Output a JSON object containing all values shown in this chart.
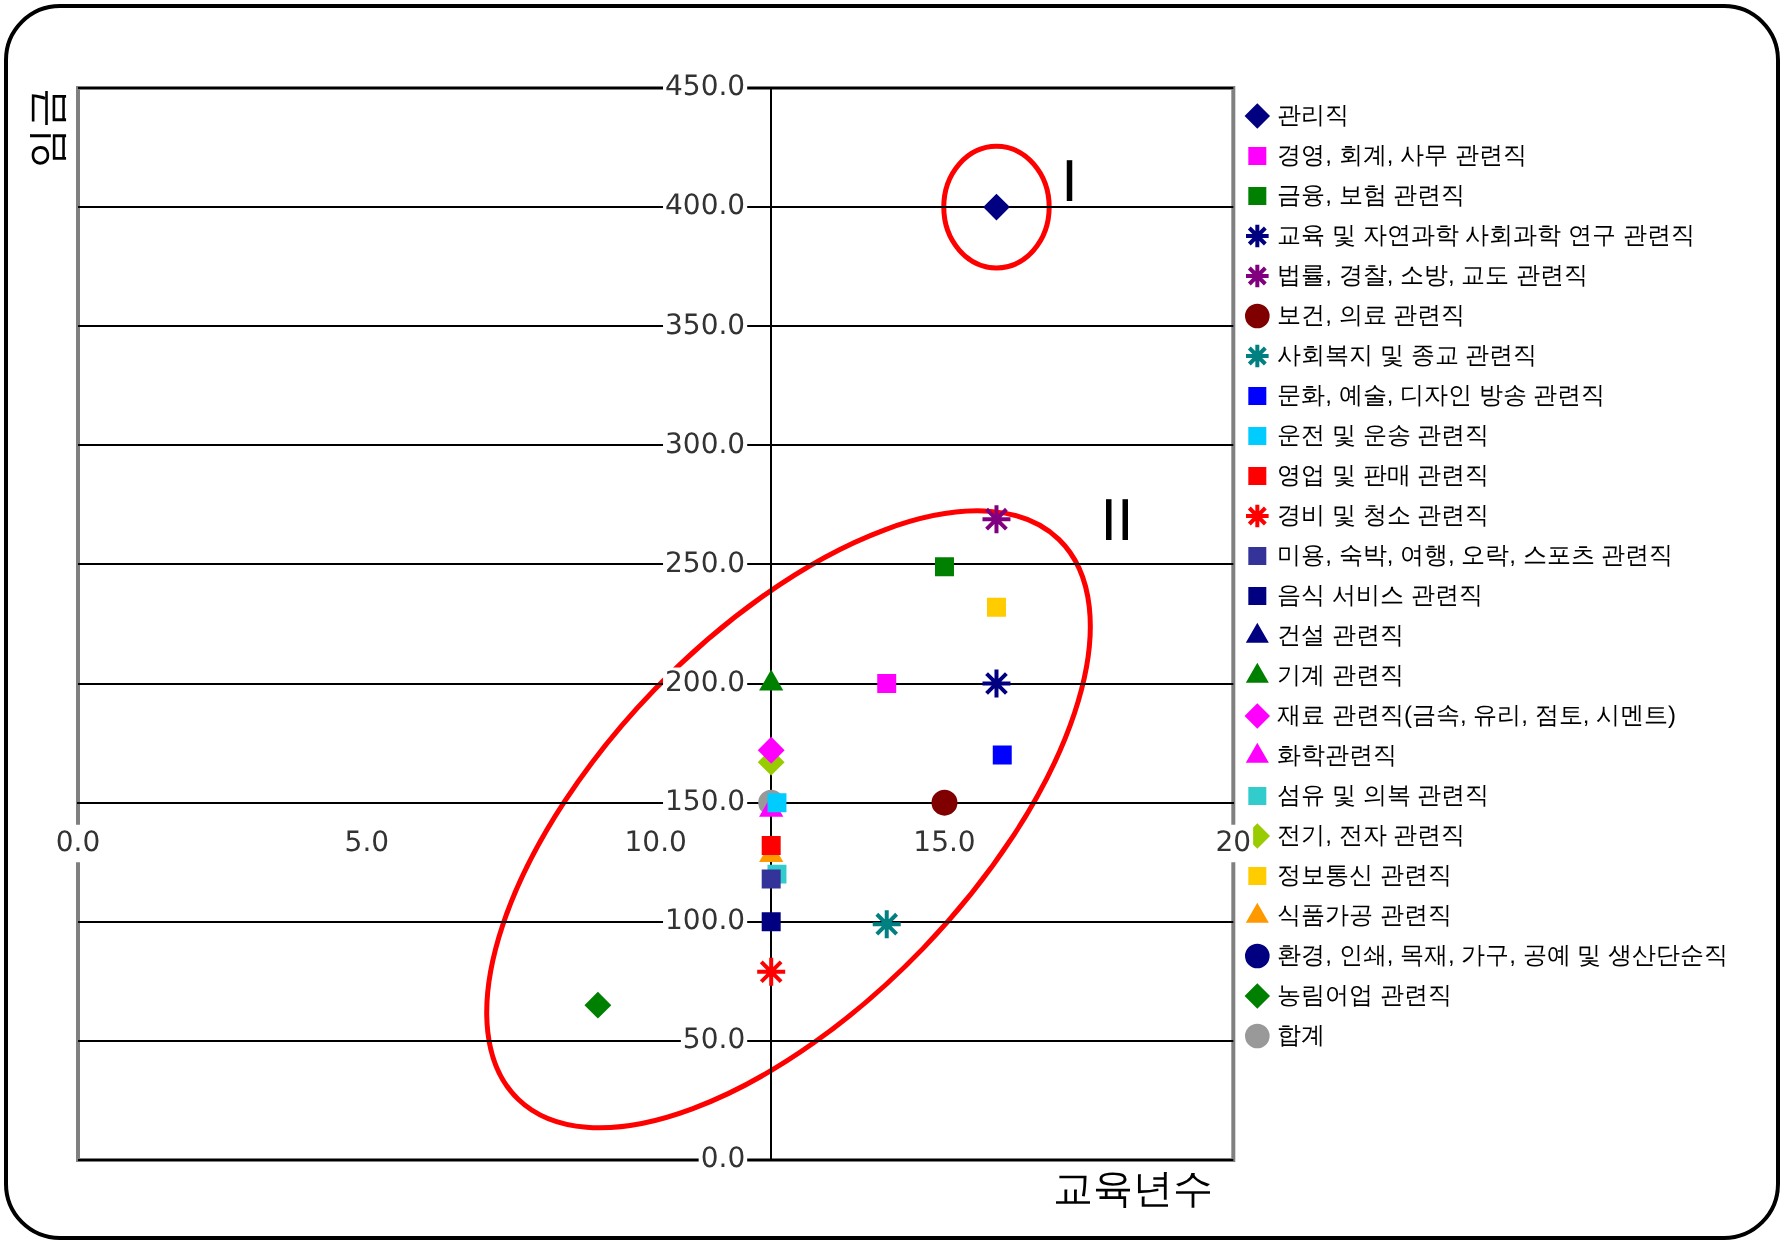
{
  "chart_data": {
    "type": "scatter",
    "xlabel": "교육년수",
    "ylabel": "임금",
    "xlim": [
      0,
      20
    ],
    "ylim": [
      0,
      450
    ],
    "xticks": [
      {
        "value": 0,
        "label": "0.0"
      },
      {
        "value": 5,
        "label": "5.0"
      },
      {
        "value": 10,
        "label": "10.0"
      },
      {
        "value": 15,
        "label": "15.0"
      },
      {
        "value": 20,
        "label": "20"
      }
    ],
    "yticks": [
      {
        "value": 0,
        "label": "0.0"
      },
      {
        "value": 50,
        "label": "50.0"
      },
      {
        "value": 100,
        "label": "100.0"
      },
      {
        "value": 150,
        "label": "150.0"
      },
      {
        "value": 200,
        "label": "200.0"
      },
      {
        "value": 250,
        "label": "250.0"
      },
      {
        "value": 300,
        "label": "300.0"
      },
      {
        "value": 350,
        "label": "350.0"
      },
      {
        "value": 400,
        "label": "400.0"
      },
      {
        "value": 450,
        "label": "450.0"
      }
    ],
    "grid": "y",
    "legend": "right",
    "annotations": [
      "I",
      "II"
    ],
    "series": [
      {
        "name": "관리직",
        "color": "#000080",
        "marker": "diamond",
        "x": [
          15.9
        ],
        "values": [
          400
        ]
      },
      {
        "name": "경영, 회계, 사무 관련직",
        "color": "#ff00ff",
        "marker": "square",
        "x": [
          14
        ],
        "values": [
          200
        ]
      },
      {
        "name": "금융, 보험 관련직",
        "color": "#008000",
        "marker": "square",
        "x": [
          15
        ],
        "values": [
          249
        ]
      },
      {
        "name": "교육 및 자연과학 사회과학 연구 관련직",
        "color": "#000080",
        "marker": "cross",
        "x": [
          15.9
        ],
        "values": [
          200
        ]
      },
      {
        "name": "법률, 경찰, 소방, 교도 관련직",
        "color": "#800080",
        "marker": "cross",
        "x": [
          15.9
        ],
        "values": [
          269
        ]
      },
      {
        "name": "보건, 의료 관련직",
        "color": "#800000",
        "marker": "circle",
        "x": [
          15
        ],
        "values": [
          150
        ]
      },
      {
        "name": "사회복지 및 종교 관련직",
        "color": "#008080",
        "marker": "cross",
        "x": [
          14
        ],
        "values": [
          99
        ]
      },
      {
        "name": "문화, 예술, 디자인 방송 관련직",
        "color": "#0000ff",
        "marker": "square",
        "x": [
          16
        ],
        "values": [
          170
        ]
      },
      {
        "name": "운전 및 운송 관련직",
        "color": "#00ccff",
        "marker": "square",
        "x": [
          12.1
        ],
        "values": [
          150
        ]
      },
      {
        "name": "영업 및 판매 관련직",
        "color": "#ff0000",
        "marker": "square",
        "x": [
          12
        ],
        "values": [
          132
        ]
      },
      {
        "name": "경비 및 청소 관련직",
        "color": "#ff0000",
        "marker": "cross",
        "x": [
          12
        ],
        "values": [
          79
        ]
      },
      {
        "name": "미용, 숙박, 여행, 오락, 스포츠 관련직",
        "color": "#333399",
        "marker": "square",
        "x": [
          12
        ],
        "values": [
          118
        ]
      },
      {
        "name": "음식 서비스 관련직",
        "color": "#000080",
        "marker": "square",
        "x": [
          12
        ],
        "values": [
          100
        ]
      },
      {
        "name": "건설 관련직",
        "color": "#000080",
        "marker": "triangle",
        "x": [
          null
        ],
        "values": [
          null
        ]
      },
      {
        "name": "기계 관련직",
        "color": "#008000",
        "marker": "triangle",
        "x": [
          12
        ],
        "values": [
          200
        ]
      },
      {
        "name": "재료 관련직(금속, 유리, 점토, 시멘트)",
        "color": "#ff00ff",
        "marker": "diamond",
        "x": [
          12
        ],
        "values": [
          172
        ]
      },
      {
        "name": "화학관련직",
        "color": "#ff00ff",
        "marker": "triangle",
        "x": [
          12
        ],
        "values": [
          147
        ]
      },
      {
        "name": "섬유 및 의복 관련직",
        "color": "#33cccc",
        "marker": "square",
        "x": [
          12.1
        ],
        "values": [
          120
        ]
      },
      {
        "name": "전기, 전자 관련직",
        "color": "#99cc00",
        "marker": "diamond",
        "x": [
          12
        ],
        "values": [
          167
        ]
      },
      {
        "name": "정보통신 관련직",
        "color": "#ffcc00",
        "marker": "square",
        "x": [
          15.9
        ],
        "values": [
          232
        ]
      },
      {
        "name": "식품가공 관련직",
        "color": "#ff9900",
        "marker": "triangle",
        "x": [
          12
        ],
        "values": [
          128
        ]
      },
      {
        "name": "환경, 인쇄, 목재, 가구, 공예 및 생산단순직",
        "color": "#000080",
        "marker": "circle",
        "x": [
          null
        ],
        "values": [
          null
        ]
      },
      {
        "name": "농림어업 관련직",
        "color": "#008000",
        "marker": "diamond",
        "x": [
          9
        ],
        "values": [
          65
        ]
      },
      {
        "name": "합계",
        "color": "#999999",
        "marker": "circle",
        "x": [
          12
        ],
        "values": [
          150
        ]
      }
    ]
  }
}
